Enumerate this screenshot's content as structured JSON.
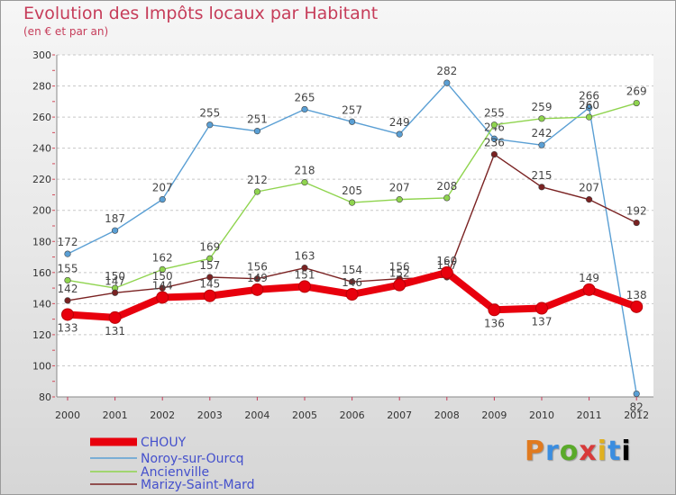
{
  "chart_data": {
    "type": "line",
    "title": "Evolution des Impôts locaux par Habitant",
    "subtitle": "(en € et par an)",
    "x": [
      "2000",
      "2001",
      "2002",
      "2003",
      "2004",
      "2005",
      "2006",
      "2007",
      "2008",
      "2009",
      "2010",
      "2011",
      "2012"
    ],
    "ylim": [
      80,
      300
    ],
    "yticks": [
      80,
      100,
      120,
      140,
      160,
      180,
      200,
      220,
      240,
      260,
      280,
      300
    ],
    "grid": "horizontal dashed",
    "legend_position": "bottom-left",
    "series": [
      {
        "name": "CHOUY",
        "color": "#e8000d",
        "values": [
          133,
          131,
          144,
          145,
          149,
          151,
          146,
          152,
          160,
          136,
          137,
          149,
          138
        ]
      },
      {
        "name": "Noroy-sur-Ourcq",
        "color": "#5a9fd4",
        "values": [
          172,
          187,
          207,
          255,
          251,
          265,
          257,
          249,
          282,
          246,
          242,
          266,
          82
        ]
      },
      {
        "name": "Ancienville",
        "color": "#8fd44e",
        "values": [
          155,
          150,
          162,
          169,
          212,
          218,
          205,
          207,
          208,
          255,
          259,
          260,
          269
        ]
      },
      {
        "name": "Marizy-Saint-Mard",
        "color": "#7a2222",
        "values": [
          142,
          147,
          150,
          157,
          156,
          163,
          154,
          156,
          157,
          236,
          215,
          207,
          192
        ]
      }
    ]
  },
  "logo": {
    "text": [
      "P",
      "r",
      "o",
      "x",
      "i",
      "t",
      "i"
    ]
  }
}
